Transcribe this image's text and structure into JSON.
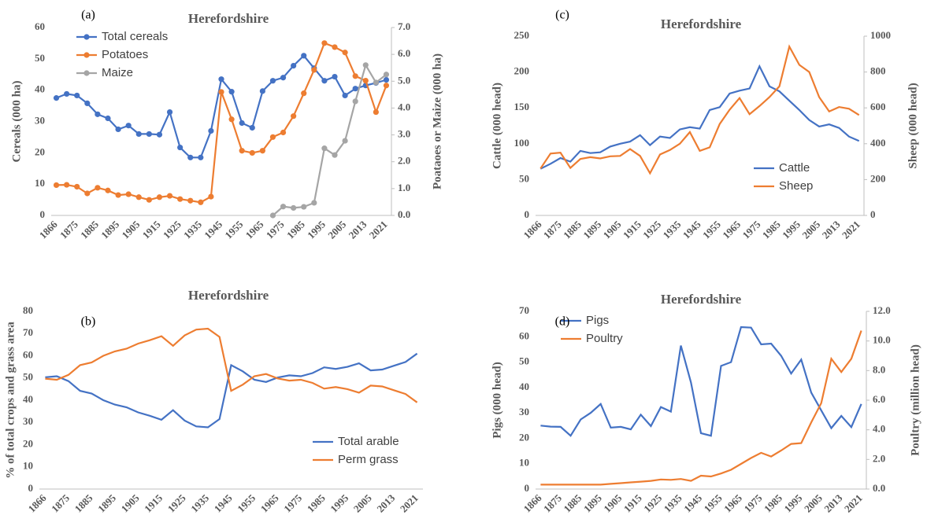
{
  "chart_data": [
    {
      "type": "line",
      "label": "(a)",
      "title": "Herefordshire",
      "ylabel": "Cereals (000 ha)",
      "y2label": "Poataoes or Maize (000 ha)",
      "categories": [
        "1866",
        null,
        "1875",
        null,
        "1885",
        null,
        "1895",
        null,
        "1905",
        null,
        "1915",
        null,
        "1925",
        null,
        "1935",
        null,
        "1945",
        null,
        "1955",
        null,
        "1965",
        null,
        "1975",
        null,
        "1985",
        null,
        "1995",
        null,
        "2005",
        null,
        "2013",
        null,
        "2021"
      ],
      "markers": true,
      "legend": "upper left",
      "ylim": [
        0,
        60
      ],
      "yticks": [
        0,
        10,
        20,
        30,
        40,
        50,
        60
      ],
      "y2lim": [
        0,
        7
      ],
      "y2ticks": [
        {
          "value": 0,
          "label": "0.0"
        },
        {
          "value": 1,
          "label": "1.0"
        },
        {
          "value": 2,
          "label": "2.0"
        },
        {
          "value": 3,
          "label": "3.0"
        },
        {
          "value": 4,
          "label": "4.0"
        },
        {
          "value": 5,
          "label": "5.0"
        },
        {
          "value": 6,
          "label": "6.0"
        },
        {
          "value": 7,
          "label": "7.0"
        }
      ],
      "series": [
        {
          "name": "Total cereals",
          "color": "#4472c4",
          "values": [
            37.5,
            38.8,
            38.3,
            35.8,
            32.3,
            31,
            27.5,
            28.7,
            26,
            26,
            25.8,
            33,
            21.7,
            18.5,
            18.5,
            27,
            43.5,
            39.5,
            29.5,
            28,
            39.7,
            43,
            44,
            47.8,
            51,
            47,
            43,
            44.3,
            38.3,
            40.5,
            41.5,
            42.3,
            43.3
          ]
        },
        {
          "name": "Potatoes",
          "color": "#ed7d31",
          "axis": "y2",
          "values": [
            1.13,
            1.14,
            1.07,
            0.82,
            1.03,
            0.93,
            0.76,
            0.79,
            0.68,
            0.58,
            0.68,
            0.73,
            0.61,
            0.55,
            0.49,
            0.7,
            4.6,
            3.58,
            2.41,
            2.33,
            2.41,
            2.92,
            3.09,
            3.7,
            4.55,
            5.42,
            6.42,
            6.27,
            6.07,
            5.19,
            5.02,
            3.85,
            4.84
          ]
        },
        {
          "name": "Maize",
          "color": "#a5a5a5",
          "axis": "y2",
          "values": [
            null,
            null,
            null,
            null,
            null,
            null,
            null,
            null,
            null,
            null,
            null,
            null,
            null,
            null,
            null,
            null,
            null,
            null,
            null,
            null,
            null,
            0,
            0.33,
            0.28,
            0.32,
            0.47,
            2.5,
            2.25,
            2.78,
            4.25,
            5.6,
            4.95,
            5.25
          ]
        }
      ]
    },
    {
      "type": "line",
      "label": "(b)",
      "title": "Herefordshire",
      "ylabel": "% of total crops and grass area",
      "categories": [
        "1866",
        null,
        "1875",
        null,
        "1885",
        null,
        "1895",
        null,
        "1905",
        null,
        "1915",
        null,
        "1925",
        null,
        "1935",
        null,
        "1945",
        null,
        "1955",
        null,
        "1965",
        null,
        "1975",
        null,
        "1985",
        null,
        "1995",
        null,
        "2005",
        null,
        "2013",
        null,
        "2021"
      ],
      "markers": false,
      "legend": "lower right",
      "ylim": [
        0,
        80
      ],
      "yticks": [
        0,
        10,
        20,
        30,
        40,
        50,
        60,
        70,
        80
      ],
      "series": [
        {
          "name": "Total arable",
          "color": "#4472c4",
          "values": [
            50.3,
            50.8,
            48.6,
            44.2,
            43,
            40,
            38,
            36.8,
            34.5,
            33,
            31.2,
            35.5,
            30.8,
            28.2,
            27.8,
            31.5,
            55.8,
            53,
            49.2,
            48.2,
            50.2,
            51.2,
            50.8,
            52.2,
            54.8,
            54.1,
            55,
            56.6,
            53.4,
            53.8,
            55.5,
            57.2,
            61
          ]
        },
        {
          "name": "Perm grass",
          "color": "#ed7d31",
          "values": [
            49.7,
            49.2,
            51.4,
            55.8,
            57,
            60,
            62,
            63.2,
            65.5,
            67,
            68.8,
            64.5,
            69.2,
            71.8,
            72.2,
            68.5,
            44.2,
            47,
            50.8,
            51.8,
            49.8,
            48.8,
            49.2,
            47.8,
            45.2,
            45.9,
            45,
            43.4,
            46.6,
            46.2,
            44.5,
            42.8,
            39
          ]
        }
      ]
    },
    {
      "type": "line",
      "label": "(c)",
      "title": "Herefordshire",
      "ylabel": "Cattle (000 head)",
      "y2label": "Sheep (000 head)",
      "categories": [
        "1866",
        null,
        "1875",
        null,
        "1885",
        null,
        "1895",
        null,
        "1905",
        null,
        "1915",
        null,
        "1925",
        null,
        "1935",
        null,
        "1945",
        null,
        "1955",
        null,
        "1965",
        null,
        "1975",
        null,
        "1985",
        null,
        "1995",
        null,
        "2005",
        null,
        "2013",
        null,
        "2021"
      ],
      "markers": false,
      "legend": "lower right",
      "ylim": [
        0,
        250
      ],
      "yticks": [
        0,
        50,
        100,
        150,
        200,
        250
      ],
      "y2lim": [
        0,
        1000
      ],
      "y2ticks": [
        0,
        200,
        400,
        600,
        800,
        1000
      ],
      "series": [
        {
          "name": "Cattle",
          "color": "#4472c4",
          "values": [
            65,
            72,
            80,
            75,
            90,
            87,
            88,
            96,
            100,
            103,
            112,
            98,
            110,
            108,
            120,
            123,
            121,
            147,
            151,
            170,
            174,
            177,
            208,
            180,
            173,
            160,
            147,
            133,
            124,
            127,
            122,
            110,
            104
          ]
        },
        {
          "name": "Sheep",
          "color": "#ed7d31",
          "axis": "y2",
          "values": [
            262,
            345,
            350,
            265,
            315,
            325,
            318,
            330,
            332,
            370,
            332,
            235,
            340,
            365,
            400,
            465,
            360,
            380,
            510,
            590,
            655,
            565,
            610,
            660,
            720,
            942,
            840,
            800,
            660,
            580,
            605,
            595,
            560
          ]
        }
      ]
    },
    {
      "type": "line",
      "label": "(d)",
      "title": "Herefordshire",
      "ylabel": "Pigs (000 head)",
      "y2label": "Poultry (million head)",
      "categories": [
        "1866",
        null,
        "1875",
        null,
        "1885",
        null,
        "1895",
        null,
        "1905",
        null,
        "1915",
        null,
        "1925",
        null,
        "1935",
        null,
        "1945",
        null,
        "1955",
        null,
        "1965",
        null,
        "1975",
        null,
        "1985",
        null,
        "1995",
        null,
        "2005",
        null,
        "2013",
        null,
        "2021"
      ],
      "markers": false,
      "legend": "upper left",
      "ylim": [
        0,
        70
      ],
      "yticks": [
        0,
        10,
        20,
        30,
        40,
        50,
        60,
        70
      ],
      "y2lim": [
        0,
        12
      ],
      "y2ticks": [
        {
          "value": 0,
          "label": "0.0"
        },
        {
          "value": 2,
          "label": "2.0"
        },
        {
          "value": 4,
          "label": "4.0"
        },
        {
          "value": 6,
          "label": "6.0"
        },
        {
          "value": 8,
          "label": "8.0"
        },
        {
          "value": 10,
          "label": "10.0"
        },
        {
          "value": 12,
          "label": "12.0"
        }
      ],
      "series": [
        {
          "name": "Pigs",
          "color": "#4472c4",
          "values": [
            25,
            24.6,
            24.5,
            21,
            27.4,
            30,
            33.5,
            24.2,
            24.5,
            23.5,
            29.3,
            24.8,
            32.3,
            30.5,
            56.5,
            42,
            22,
            21,
            48.5,
            50,
            63.8,
            63.6,
            57,
            57.3,
            52.5,
            45.5,
            51,
            38,
            31,
            24,
            28.8,
            24.4,
            33.5
          ]
        },
        {
          "name": "Poultry",
          "color": "#ed7d31",
          "axis": "y2",
          "values": [
            0.3,
            0.3,
            0.3,
            0.3,
            0.3,
            0.3,
            0.3,
            0.35,
            0.4,
            0.45,
            0.5,
            0.55,
            0.65,
            0.62,
            0.68,
            0.55,
            0.9,
            0.85,
            1.05,
            1.3,
            1.7,
            2.1,
            2.45,
            2.2,
            2.6,
            3.05,
            3.1,
            4.5,
            5.8,
            8.8,
            7.9,
            8.8,
            10.7
          ]
        }
      ]
    }
  ]
}
